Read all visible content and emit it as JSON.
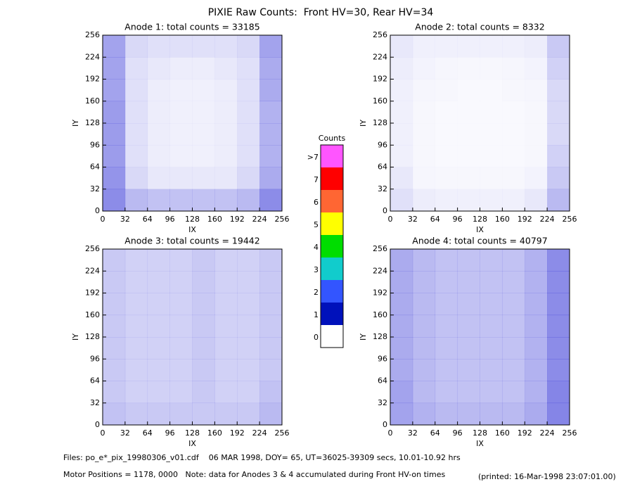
{
  "title": "PIXIE Raw Counts:  Front HV=30, Rear HV=34",
  "chart_data": [
    {
      "type": "heatmap",
      "title": "Anode 1: total counts = 33185",
      "xlabel": "IX",
      "ylabel": "IY",
      "color": "#0000cc",
      "xlim": [
        0,
        256
      ],
      "ylim": [
        0,
        256
      ],
      "xticks": [
        0,
        32,
        64,
        96,
        128,
        160,
        192,
        224,
        256
      ],
      "yticks": [
        0,
        32,
        64,
        96,
        128,
        160,
        192,
        224,
        256
      ],
      "values": [
        [
          0.6,
          0.25,
          0.2,
          0.2,
          0.2,
          0.2,
          0.25,
          0.6
        ],
        [
          0.6,
          0.2,
          0.15,
          0.12,
          0.12,
          0.15,
          0.2,
          0.55
        ],
        [
          0.6,
          0.2,
          0.12,
          0.1,
          0.1,
          0.12,
          0.2,
          0.55
        ],
        [
          0.65,
          0.2,
          0.12,
          0.1,
          0.1,
          0.12,
          0.2,
          0.5
        ],
        [
          0.65,
          0.2,
          0.12,
          0.1,
          0.1,
          0.12,
          0.2,
          0.5
        ],
        [
          0.65,
          0.2,
          0.12,
          0.1,
          0.1,
          0.12,
          0.2,
          0.5
        ],
        [
          0.7,
          0.25,
          0.15,
          0.15,
          0.15,
          0.15,
          0.25,
          0.55
        ],
        [
          0.75,
          0.45,
          0.4,
          0.4,
          0.4,
          0.4,
          0.45,
          0.75
        ]
      ]
    },
    {
      "type": "heatmap",
      "title": "Anode 2: total counts = 8332",
      "xlabel": "IX",
      "ylabel": "IY",
      "color": "#0000cc",
      "xlim": [
        0,
        256
      ],
      "ylim": [
        0,
        256
      ],
      "xticks": [
        0,
        32,
        64,
        96,
        128,
        160,
        192,
        224,
        256
      ],
      "yticks": [
        0,
        32,
        64,
        96,
        128,
        160,
        192,
        224,
        256
      ],
      "values": [
        [
          0.15,
          0.1,
          0.1,
          0.1,
          0.1,
          0.1,
          0.12,
          0.35
        ],
        [
          0.12,
          0.08,
          0.06,
          0.05,
          0.05,
          0.06,
          0.08,
          0.3
        ],
        [
          0.1,
          0.06,
          0.05,
          0.04,
          0.04,
          0.05,
          0.06,
          0.25
        ],
        [
          0.1,
          0.05,
          0.04,
          0.04,
          0.04,
          0.04,
          0.05,
          0.25
        ],
        [
          0.1,
          0.05,
          0.04,
          0.04,
          0.04,
          0.04,
          0.05,
          0.25
        ],
        [
          0.1,
          0.05,
          0.04,
          0.04,
          0.04,
          0.04,
          0.05,
          0.3
        ],
        [
          0.15,
          0.06,
          0.05,
          0.05,
          0.05,
          0.05,
          0.08,
          0.35
        ],
        [
          0.2,
          0.12,
          0.1,
          0.1,
          0.1,
          0.1,
          0.15,
          0.45
        ]
      ]
    },
    {
      "type": "heatmap",
      "title": "Anode 3: total counts = 19442",
      "xlabel": "IX",
      "ylabel": "IY",
      "color": "#0000cc",
      "xlim": [
        0,
        256
      ],
      "ylim": [
        0,
        256
      ],
      "xticks": [
        0,
        32,
        64,
        96,
        128,
        160,
        192,
        224,
        256
      ],
      "yticks": [
        0,
        32,
        64,
        96,
        128,
        160,
        192,
        224,
        256
      ],
      "values": [
        [
          0.35,
          0.3,
          0.3,
          0.3,
          0.35,
          0.3,
          0.3,
          0.35
        ],
        [
          0.35,
          0.3,
          0.3,
          0.3,
          0.35,
          0.3,
          0.3,
          0.35
        ],
        [
          0.35,
          0.3,
          0.3,
          0.3,
          0.35,
          0.3,
          0.3,
          0.35
        ],
        [
          0.35,
          0.3,
          0.3,
          0.3,
          0.35,
          0.3,
          0.3,
          0.35
        ],
        [
          0.35,
          0.3,
          0.3,
          0.3,
          0.35,
          0.3,
          0.3,
          0.35
        ],
        [
          0.35,
          0.3,
          0.3,
          0.3,
          0.35,
          0.3,
          0.3,
          0.35
        ],
        [
          0.35,
          0.3,
          0.3,
          0.3,
          0.35,
          0.3,
          0.3,
          0.4
        ],
        [
          0.4,
          0.35,
          0.35,
          0.35,
          0.35,
          0.35,
          0.35,
          0.45
        ]
      ]
    },
    {
      "type": "heatmap",
      "title": "Anode 4: total counts = 40797",
      "xlabel": "IX",
      "ylabel": "IY",
      "color": "#0000cc",
      "xlim": [
        0,
        256
      ],
      "ylim": [
        0,
        256
      ],
      "xticks": [
        0,
        32,
        64,
        96,
        128,
        160,
        192,
        224,
        256
      ],
      "yticks": [
        0,
        32,
        64,
        96,
        128,
        160,
        192,
        224,
        256
      ],
      "values": [
        [
          0.55,
          0.45,
          0.4,
          0.4,
          0.4,
          0.4,
          0.5,
          0.75
        ],
        [
          0.55,
          0.45,
          0.4,
          0.4,
          0.4,
          0.4,
          0.5,
          0.75
        ],
        [
          0.55,
          0.45,
          0.4,
          0.4,
          0.4,
          0.4,
          0.5,
          0.75
        ],
        [
          0.55,
          0.45,
          0.4,
          0.4,
          0.4,
          0.4,
          0.5,
          0.75
        ],
        [
          0.55,
          0.45,
          0.4,
          0.4,
          0.4,
          0.4,
          0.5,
          0.75
        ],
        [
          0.55,
          0.45,
          0.4,
          0.4,
          0.4,
          0.4,
          0.5,
          0.75
        ],
        [
          0.6,
          0.45,
          0.4,
          0.4,
          0.4,
          0.4,
          0.5,
          0.8
        ],
        [
          0.6,
          0.5,
          0.45,
          0.45,
          0.45,
          0.45,
          0.55,
          0.8
        ]
      ]
    }
  ],
  "colorbar": {
    "title": "Counts",
    "labels": [
      ">7",
      7,
      6,
      5,
      4,
      3,
      2,
      1,
      0
    ],
    "colors": [
      "#ff55ff",
      "#ff0000",
      "#ff6633",
      "#ffff00",
      "#00dd00",
      "#11cccc",
      "#3355ff",
      "#0011bb",
      "#ffffff"
    ]
  },
  "footer": {
    "files": "Files: po_e*_pix_19980306_v01.cdf    06 MAR 1998, DOY= 65, UT=36025-39309 secs, 10.01-10.92 hrs",
    "motor": "Motor Positions = 1178, 0000   Note: data for Anodes 3 & 4 accumulated during Front HV-on times",
    "printed": "(printed: 16-Mar-1998 23:07:01.00)"
  }
}
